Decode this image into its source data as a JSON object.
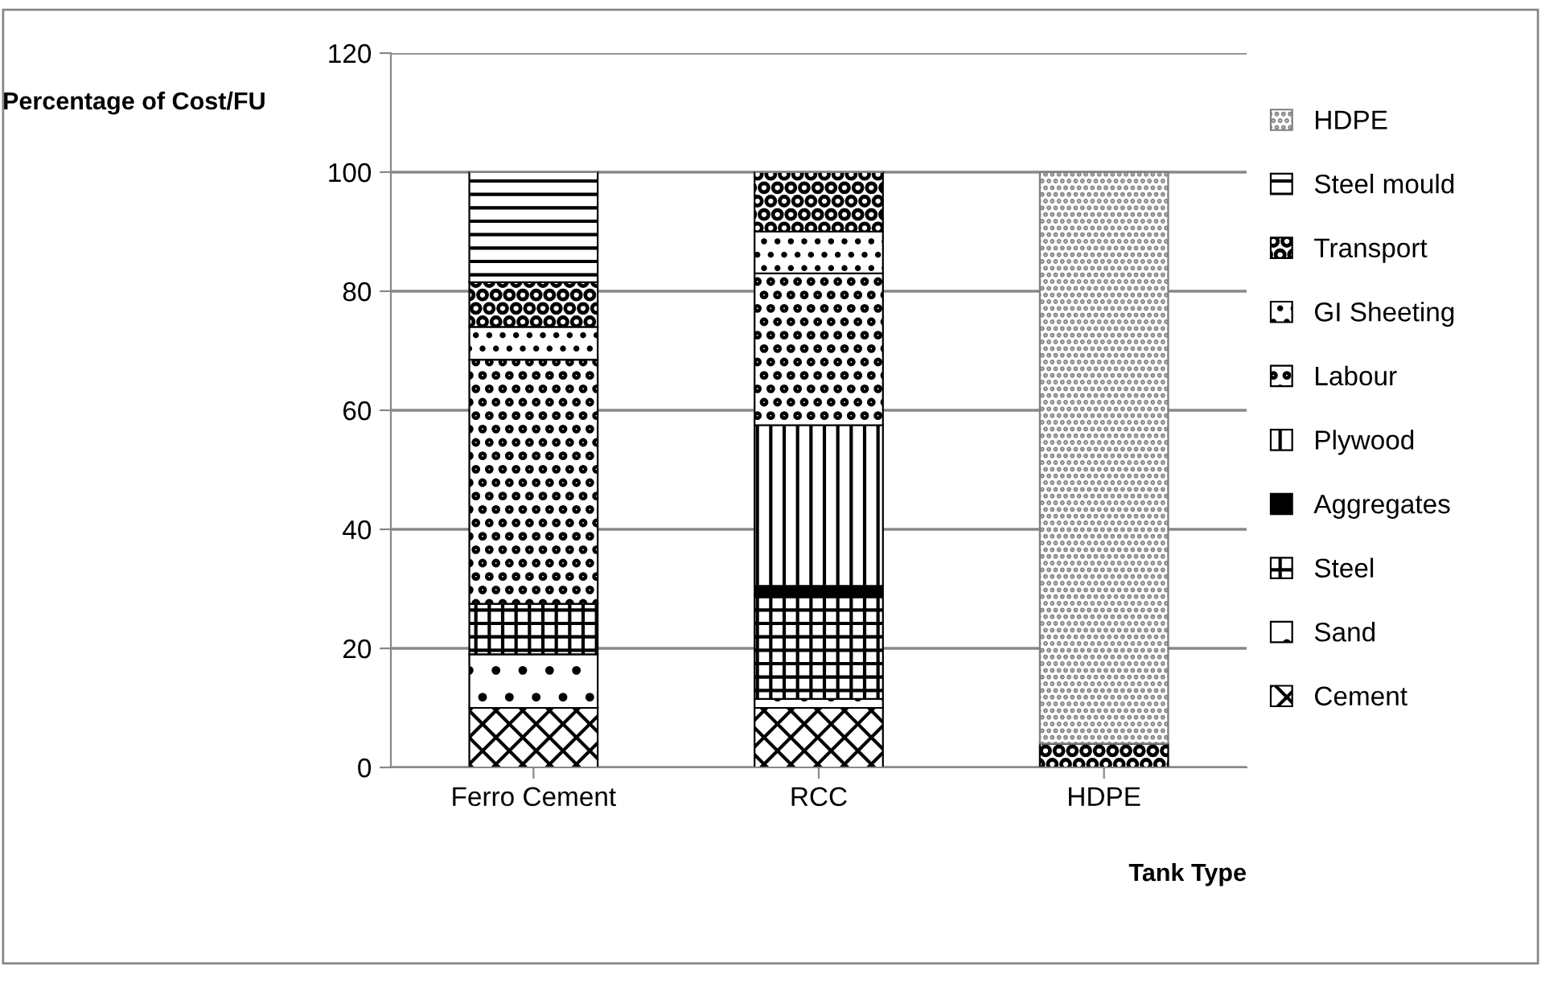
{
  "chart_data": {
    "type": "bar",
    "stacked": true,
    "xlabel": "Tank Type",
    "ylabel": "Percentage of Cost/FU",
    "categories": [
      "Ferro Cement",
      "RCC",
      "HDPE"
    ],
    "series": [
      {
        "name": "Cement",
        "color": "#000000",
        "values": [
          10,
          10,
          0
        ]
      },
      {
        "name": "Sand",
        "color": "#000000",
        "values": [
          9,
          1.5,
          0
        ]
      },
      {
        "name": "Steel",
        "color": "#000000",
        "values": [
          8.5,
          17.5,
          0
        ]
      },
      {
        "name": "Aggregates",
        "color": "#000000",
        "values": [
          0,
          1.5,
          0
        ]
      },
      {
        "name": "Plywood",
        "color": "#000000",
        "values": [
          0,
          27,
          0
        ]
      },
      {
        "name": "Labour",
        "color": "#000000",
        "values": [
          41,
          25.5,
          0
        ]
      },
      {
        "name": "GI Sheeting",
        "color": "#000000",
        "values": [
          5.5,
          7,
          0
        ]
      },
      {
        "name": "Transport",
        "color": "#000000",
        "values": [
          7.5,
          10,
          4
        ]
      },
      {
        "name": "Steel mould",
        "color": "#000000",
        "values": [
          18.5,
          0,
          0
        ]
      },
      {
        "name": "HDPE",
        "color": "#7f7f7f",
        "values": [
          0,
          0,
          96
        ]
      }
    ],
    "ylim": [
      0,
      120
    ],
    "yticks": [
      0,
      20,
      40,
      60,
      80,
      100,
      120
    ],
    "grid": "y",
    "legend": "right"
  }
}
